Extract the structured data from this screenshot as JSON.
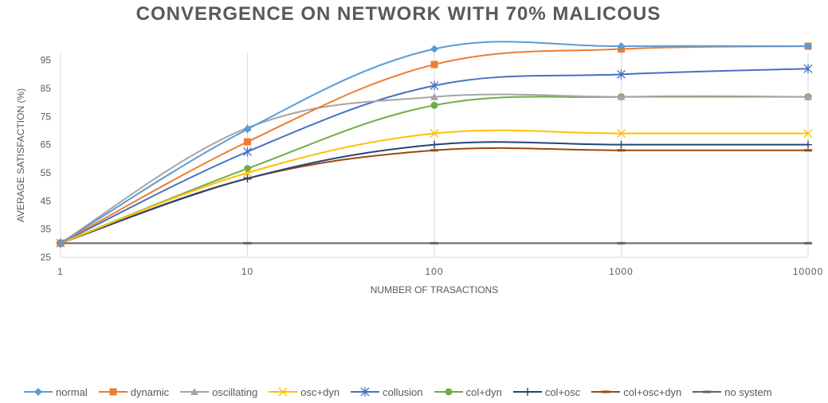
{
  "chart_data": {
    "type": "line",
    "title": "CONVERGENCE ON NETWORK WITH 70% MALICOUS",
    "xlabel": "NUMBER OF TRASACTIONS",
    "ylabel": "AVERAGE SATISFACTION (%)",
    "xscale": "log",
    "x": [
      1,
      10,
      100,
      1000,
      10000
    ],
    "x_tick_labels": [
      "1",
      "10",
      "100",
      "1000",
      "10000"
    ],
    "ylim": [
      25,
      100
    ],
    "y_ticks": [
      25,
      35,
      45,
      55,
      65,
      75,
      85,
      95
    ],
    "grid": "vertical",
    "legend_position": "bottom",
    "series": [
      {
        "name": "normal",
        "color": "#5B9BD5",
        "marker": "diamond",
        "values": [
          30,
          70.5,
          99,
          100,
          100
        ]
      },
      {
        "name": "dynamic",
        "color": "#ED7D31",
        "marker": "square",
        "values": [
          30,
          66,
          93.5,
          99,
          100
        ]
      },
      {
        "name": "oscillating",
        "color": "#A5A5A5",
        "marker": "triangle",
        "values": [
          30,
          71,
          82,
          82,
          82
        ]
      },
      {
        "name": "osc+dyn",
        "color": "#FFC000",
        "marker": "x",
        "values": [
          30,
          55,
          69,
          69,
          69
        ]
      },
      {
        "name": "collusion",
        "color": "#4472C4",
        "marker": "star",
        "values": [
          30,
          62.5,
          86,
          90,
          92
        ]
      },
      {
        "name": "col+dyn",
        "color": "#70AD47",
        "marker": "circle",
        "values": [
          30,
          56.5,
          79,
          82,
          82
        ]
      },
      {
        "name": "col+osc",
        "color": "#264478",
        "marker": "plus",
        "values": [
          30,
          53,
          65,
          65,
          65
        ]
      },
      {
        "name": "col+osc+dyn",
        "color": "#9E480E",
        "marker": "dash",
        "values": [
          30,
          53,
          63,
          63,
          63
        ]
      },
      {
        "name": "no system",
        "color": "#636363",
        "marker": "dash",
        "values": [
          30,
          30,
          30,
          30,
          30
        ]
      }
    ]
  }
}
